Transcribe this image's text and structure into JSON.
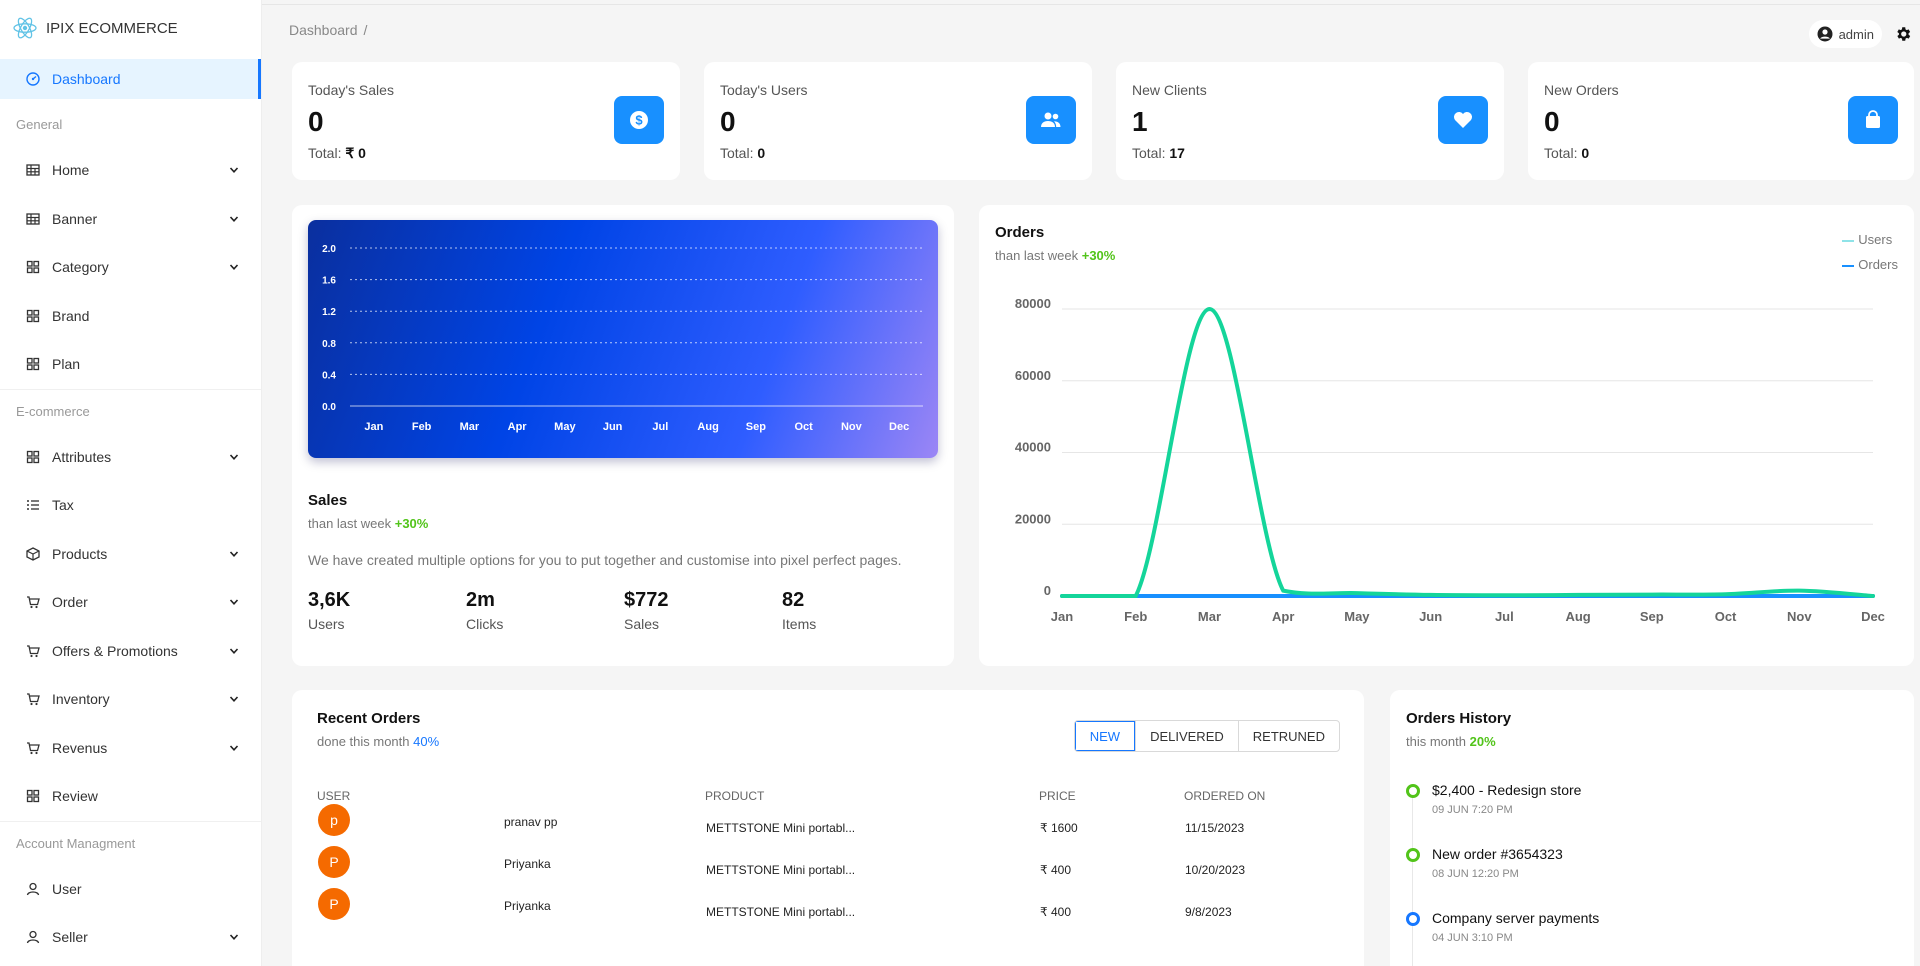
{
  "brand": {
    "name": "IPIX ECOMMERCE"
  },
  "sidebar": {
    "active": {
      "label": "Dashboard"
    },
    "groups": [
      {
        "title": "General",
        "items": [
          {
            "label": "Home",
            "icon": "table-icon",
            "expandable": true
          },
          {
            "label": "Banner",
            "icon": "table-icon",
            "expandable": true
          },
          {
            "label": "Category",
            "icon": "grid-icon",
            "expandable": true
          },
          {
            "label": "Brand",
            "icon": "grid-icon",
            "expandable": false
          },
          {
            "label": "Plan",
            "icon": "grid-icon",
            "expandable": false
          }
        ]
      },
      {
        "title": "E-commerce",
        "items": [
          {
            "label": "Attributes",
            "icon": "grid-icon",
            "expandable": true
          },
          {
            "label": "Tax",
            "icon": "list-icon",
            "expandable": false
          },
          {
            "label": "Products",
            "icon": "box-icon",
            "expandable": true
          },
          {
            "label": "Order",
            "icon": "cart-icon",
            "expandable": true
          },
          {
            "label": "Offers & Promotions",
            "icon": "cart-icon",
            "expandable": true
          },
          {
            "label": "Inventory",
            "icon": "cart-icon",
            "expandable": true
          },
          {
            "label": "Revenus",
            "icon": "cart-icon",
            "expandable": true
          },
          {
            "label": "Review",
            "icon": "grid-icon",
            "expandable": false
          }
        ]
      },
      {
        "title": "Account Managment",
        "items": [
          {
            "label": "User",
            "icon": "user-icon",
            "expandable": false
          },
          {
            "label": "Seller",
            "icon": "user-icon",
            "expandable": true
          }
        ]
      }
    ]
  },
  "header": {
    "breadcrumb": "Dashboard",
    "breadcrumb_sep": "/",
    "username": "admin"
  },
  "stats": [
    {
      "title": "Today's Sales",
      "value": "0",
      "total_label": "Total:",
      "total_value": "₹ 0",
      "icon": "dollar-icon"
    },
    {
      "title": "Today's Users",
      "value": "0",
      "total_label": "Total:",
      "total_value": "0",
      "icon": "users-icon"
    },
    {
      "title": "New Clients",
      "value": "1",
      "total_label": "Total:",
      "total_value": "17",
      "icon": "heart-icon"
    },
    {
      "title": "New Orders",
      "value": "0",
      "total_label": "Total:",
      "total_value": "0",
      "icon": "bag-icon"
    }
  ],
  "sales": {
    "title": "Sales",
    "subtitle": "than last week",
    "change": "+30%",
    "description": "We have created multiple options for you to put together and customise into pixel perfect pages.",
    "kpis": [
      {
        "value": "3,6K",
        "label": "Users"
      },
      {
        "value": "2m",
        "label": "Clicks"
      },
      {
        "value": "$772",
        "label": "Sales"
      },
      {
        "value": "82",
        "label": "Items"
      }
    ]
  },
  "orders_card": {
    "title": "Orders",
    "subtitle": "than last week",
    "change": "+30%"
  },
  "chart_data": [
    {
      "type": "bar",
      "title": "",
      "categories": [
        "Jan",
        "Feb",
        "Mar",
        "Apr",
        "May",
        "Jun",
        "Jul",
        "Aug",
        "Sep",
        "Oct",
        "Nov",
        "Dec"
      ],
      "values": [
        0,
        0,
        0,
        0,
        0,
        0,
        0,
        0,
        0,
        0,
        0,
        0
      ],
      "yticks": [
        "0.0",
        "0.4",
        "0.8",
        "1.2",
        "1.6",
        "2.0"
      ],
      "ylim": [
        0,
        2.0
      ],
      "grid": true
    },
    {
      "type": "line",
      "title": "Orders",
      "x": [
        "Jan",
        "Feb",
        "Mar",
        "Apr",
        "May",
        "Jun",
        "Jul",
        "Aug",
        "Sep",
        "Oct",
        "Nov",
        "Dec"
      ],
      "yticks": [
        "0",
        "20000",
        "40000",
        "60000",
        "80000"
      ],
      "ylim": [
        0,
        80000
      ],
      "legend": "top-right",
      "series": [
        {
          "name": "Users",
          "color": "#14d59a",
          "values": [
            0,
            0,
            80000,
            1500,
            800,
            300,
            200,
            300,
            400,
            500,
            1500,
            0
          ]
        },
        {
          "name": "Orders",
          "color": "#1890ff",
          "values": [
            0,
            0,
            0,
            0,
            0,
            0,
            0,
            0,
            0,
            0,
            0,
            0
          ]
        }
      ]
    }
  ],
  "recent_orders": {
    "title": "Recent Orders",
    "subtitle": "done this month",
    "percent": "40%",
    "filters": [
      "NEW",
      "DELIVERED",
      "RETRUNED"
    ],
    "columns": [
      "USER",
      "PRODUCT",
      "PRICE",
      "ORDERED ON"
    ],
    "rows": [
      {
        "initial": "p",
        "user": "pranav pp",
        "product": "METTSTONE Mini portabl...",
        "price": "₹ 1600",
        "date": "11/15/2023"
      },
      {
        "initial": "P",
        "user": "Priyanka",
        "product": "METTSTONE Mini portabl...",
        "price": "₹ 400",
        "date": "10/20/2023"
      },
      {
        "initial": "P",
        "user": "Priyanka",
        "product": "METTSTONE Mini portabl...",
        "price": "₹ 400",
        "date": "9/8/2023"
      }
    ]
  },
  "orders_history": {
    "title": "Orders History",
    "subtitle": "this month",
    "percent": "20%",
    "items": [
      {
        "title": "$2,400 - Redesign store",
        "date": "09 JUN 7:20 PM",
        "color": "green"
      },
      {
        "title": "New order #3654323",
        "date": "08 JUN 12:20 PM",
        "color": "green"
      },
      {
        "title": "Company server payments",
        "date": "04 JUN 3:10 PM",
        "color": "blue"
      }
    ]
  }
}
